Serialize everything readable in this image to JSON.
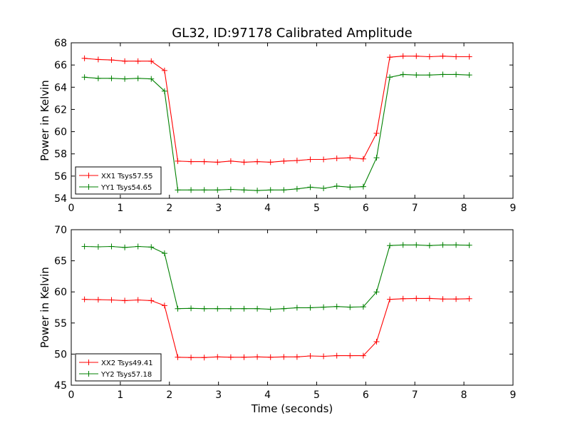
{
  "figure": {
    "title": "GL32, ID:97178 Calibrated Amplitude",
    "xlabel": "Time (seconds)"
  },
  "colors": {
    "red": "#ff0000",
    "green": "#008000",
    "axes": "#000000",
    "background": "#ffffff"
  },
  "chart_data": [
    {
      "type": "line",
      "ylabel": "Power in Kelvin",
      "xlim": [
        0,
        9
      ],
      "ylim": [
        54,
        68
      ],
      "xticks": [
        0,
        1,
        2,
        3,
        4,
        5,
        6,
        7,
        8,
        9
      ],
      "yticks": [
        54,
        56,
        58,
        60,
        62,
        64,
        66,
        68
      ],
      "grid": false,
      "legend_position": "lower-left",
      "marker": "+",
      "x": [
        0.27,
        0.55,
        0.82,
        1.09,
        1.36,
        1.63,
        1.9,
        2.17,
        2.44,
        2.71,
        2.98,
        3.25,
        3.52,
        3.79,
        4.06,
        4.33,
        4.6,
        4.87,
        5.14,
        5.41,
        5.68,
        5.95,
        6.22,
        6.49,
        6.76,
        7.03,
        7.3,
        7.57,
        7.84,
        8.11
      ],
      "series": [
        {
          "name": "XX1 Tsys57.55",
          "color": "#ff0000",
          "values": [
            66.6,
            66.5,
            66.45,
            66.35,
            66.35,
            66.35,
            65.5,
            57.35,
            57.3,
            57.3,
            57.25,
            57.35,
            57.25,
            57.3,
            57.25,
            57.35,
            57.4,
            57.5,
            57.5,
            57.6,
            57.65,
            57.55,
            59.85,
            66.7,
            66.8,
            66.8,
            66.75,
            66.8,
            66.75,
            66.75
          ]
        },
        {
          "name": "YY1 Tsys54.65",
          "color": "#008000",
          "values": [
            64.9,
            64.8,
            64.8,
            64.75,
            64.8,
            64.75,
            63.65,
            54.75,
            54.75,
            54.75,
            54.75,
            54.8,
            54.75,
            54.7,
            54.75,
            54.75,
            54.85,
            55.0,
            54.9,
            55.1,
            55.0,
            55.05,
            57.65,
            64.9,
            65.15,
            65.1,
            65.1,
            65.15,
            65.15,
            65.1
          ]
        }
      ]
    },
    {
      "type": "line",
      "ylabel": "Power in Kelvin",
      "xlim": [
        0,
        9
      ],
      "ylim": [
        45,
        70
      ],
      "xticks": [
        0,
        1,
        2,
        3,
        4,
        5,
        6,
        7,
        8,
        9
      ],
      "yticks": [
        45,
        50,
        55,
        60,
        65,
        70
      ],
      "grid": false,
      "legend_position": "lower-left",
      "marker": "+",
      "x": [
        0.27,
        0.55,
        0.82,
        1.09,
        1.36,
        1.63,
        1.9,
        2.17,
        2.44,
        2.71,
        2.98,
        3.25,
        3.52,
        3.79,
        4.06,
        4.33,
        4.6,
        4.87,
        5.14,
        5.41,
        5.68,
        5.95,
        6.22,
        6.49,
        6.76,
        7.03,
        7.3,
        7.57,
        7.84,
        8.11
      ],
      "series": [
        {
          "name": "XX2 Tsys49.41",
          "color": "#ff0000",
          "values": [
            58.8,
            58.75,
            58.7,
            58.6,
            58.7,
            58.6,
            57.8,
            49.5,
            49.45,
            49.45,
            49.55,
            49.5,
            49.5,
            49.55,
            49.5,
            49.55,
            49.55,
            49.7,
            49.65,
            49.75,
            49.75,
            49.75,
            52.0,
            58.8,
            58.9,
            58.95,
            58.95,
            58.85,
            58.85,
            58.9
          ]
        },
        {
          "name": "YY2 Tsys57.18",
          "color": "#008000",
          "values": [
            67.3,
            67.25,
            67.3,
            67.15,
            67.3,
            67.2,
            66.2,
            57.3,
            57.35,
            57.3,
            57.3,
            57.3,
            57.3,
            57.3,
            57.2,
            57.3,
            57.45,
            57.45,
            57.55,
            57.65,
            57.55,
            57.6,
            60.0,
            67.45,
            67.55,
            67.55,
            67.45,
            67.55,
            67.55,
            67.5
          ]
        }
      ]
    }
  ]
}
